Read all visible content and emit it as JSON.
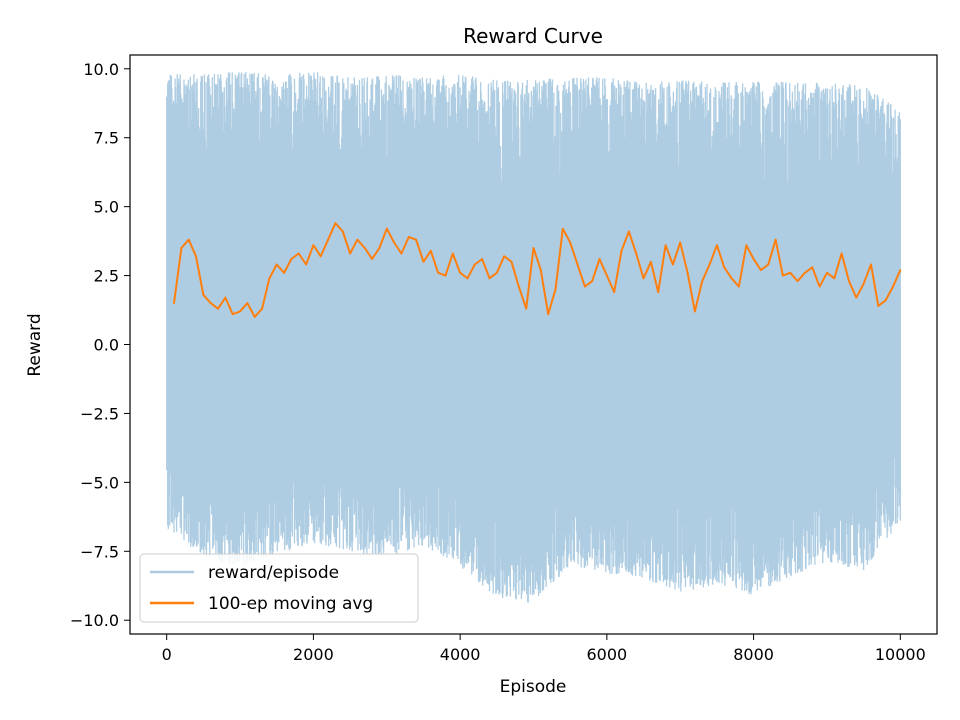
{
  "chart_data": {
    "type": "line",
    "title": "Reward Curve",
    "xlabel": "Episode",
    "ylabel": "Reward",
    "xlim": [
      -500,
      10500
    ],
    "ylim": [
      -10.5,
      10.5
    ],
    "xticks": [
      0,
      2000,
      4000,
      6000,
      8000,
      10000
    ],
    "xtick_labels": [
      "0",
      "2000",
      "4000",
      "6000",
      "8000",
      "10000"
    ],
    "yticks": [
      -10.0,
      -7.5,
      -5.0,
      -2.5,
      0.0,
      2.5,
      5.0,
      7.5,
      10.0
    ],
    "ytick_labels": [
      "−10.0",
      "−7.5",
      "−5.0",
      "−2.5",
      "0.0",
      "2.5",
      "5.0",
      "7.5",
      "10.0"
    ],
    "grid": false,
    "legend_position": "lower-left",
    "series": [
      {
        "name": "reward/episode",
        "color": "#aecde3",
        "x": [
          0,
          10000
        ],
        "summary": {
          "min": -9.5,
          "max": 10.0
        },
        "band": {
          "x": [
            0,
            500,
            1000,
            1500,
            2000,
            2500,
            3000,
            3500,
            4000,
            4500,
            5000,
            5500,
            6000,
            6500,
            7000,
            7500,
            8000,
            8500,
            9000,
            9500,
            10000
          ],
          "upper": [
            9.8,
            9.8,
            9.9,
            9.8,
            9.9,
            9.7,
            9.8,
            9.7,
            9.8,
            9.6,
            9.6,
            9.7,
            9.7,
            9.5,
            9.6,
            9.5,
            9.6,
            9.5,
            9.5,
            9.4,
            8.5
          ],
          "lower": [
            -6.7,
            -7.7,
            -8.1,
            -7.6,
            -7.2,
            -7.5,
            -7.7,
            -7.3,
            -8.1,
            -9.2,
            -9.4,
            -8.0,
            -8.3,
            -8.5,
            -9.0,
            -8.7,
            -9.1,
            -8.4,
            -7.9,
            -8.2,
            -6.4
          ]
        }
      },
      {
        "name": "100-ep moving avg",
        "color": "#ff7f0e",
        "x": [
          100,
          200,
          300,
          400,
          500,
          600,
          700,
          800,
          900,
          1000,
          1100,
          1200,
          1300,
          1400,
          1500,
          1600,
          1700,
          1800,
          1900,
          2000,
          2100,
          2200,
          2300,
          2400,
          2500,
          2600,
          2700,
          2800,
          2900,
          3000,
          3100,
          3200,
          3300,
          3400,
          3500,
          3600,
          3700,
          3800,
          3900,
          4000,
          4100,
          4200,
          4300,
          4400,
          4500,
          4600,
          4700,
          4800,
          4900,
          5000,
          5100,
          5200,
          5300,
          5400,
          5500,
          5600,
          5700,
          5800,
          5900,
          6000,
          6100,
          6200,
          6300,
          6400,
          6500,
          6600,
          6700,
          6800,
          6900,
          7000,
          7100,
          7200,
          7300,
          7400,
          7500,
          7600,
          7700,
          7800,
          7900,
          8000,
          8100,
          8200,
          8300,
          8400,
          8500,
          8600,
          8700,
          8800,
          8900,
          9000,
          9100,
          9200,
          9300,
          9400,
          9500,
          9600,
          9700,
          9800,
          9900,
          10000
        ],
        "y": [
          1.5,
          3.5,
          3.8,
          3.2,
          1.8,
          1.5,
          1.3,
          1.7,
          1.1,
          1.2,
          1.5,
          1.0,
          1.3,
          2.4,
          2.9,
          2.6,
          3.1,
          3.3,
          2.9,
          3.6,
          3.2,
          3.8,
          4.4,
          4.1,
          3.3,
          3.8,
          3.5,
          3.1,
          3.5,
          4.2,
          3.7,
          3.3,
          3.9,
          3.8,
          3.0,
          3.4,
          2.6,
          2.5,
          3.3,
          2.6,
          2.4,
          2.9,
          3.1,
          2.4,
          2.6,
          3.2,
          3.0,
          2.1,
          1.3,
          3.5,
          2.7,
          1.1,
          2.0,
          4.2,
          3.7,
          2.9,
          2.1,
          2.3,
          3.1,
          2.5,
          1.9,
          3.4,
          4.1,
          3.3,
          2.4,
          3.0,
          1.9,
          3.6,
          2.9,
          3.7,
          2.6,
          1.2,
          2.3,
          2.9,
          3.6,
          2.8,
          2.4,
          2.1,
          3.6,
          3.1,
          2.7,
          2.9,
          3.8,
          2.5,
          2.6,
          2.3,
          2.6,
          2.8,
          2.1,
          2.6,
          2.4,
          3.3,
          2.3,
          1.7,
          2.2,
          2.9,
          1.4,
          1.6,
          2.1,
          2.7
        ]
      }
    ]
  }
}
